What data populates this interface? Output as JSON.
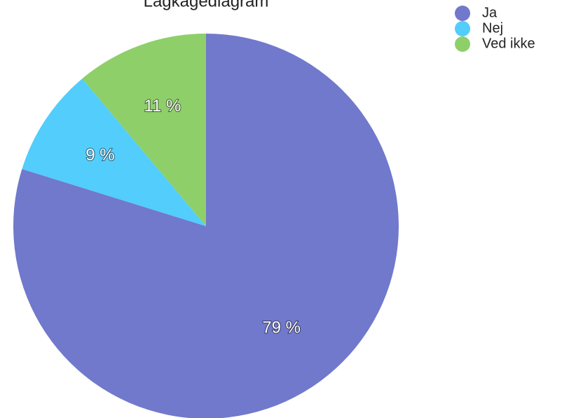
{
  "chart_data": {
    "type": "pie",
    "title": "Lagkagediagram",
    "categories": [
      "Ja",
      "Nej",
      "Ved ikke"
    ],
    "values": [
      79,
      9,
      11
    ],
    "value_labels": [
      "79 %",
      "9 %",
      "11 %"
    ],
    "colors": [
      "#7079cb",
      "#52cdfc",
      "#8ecf6a"
    ],
    "legend": "top-right"
  }
}
